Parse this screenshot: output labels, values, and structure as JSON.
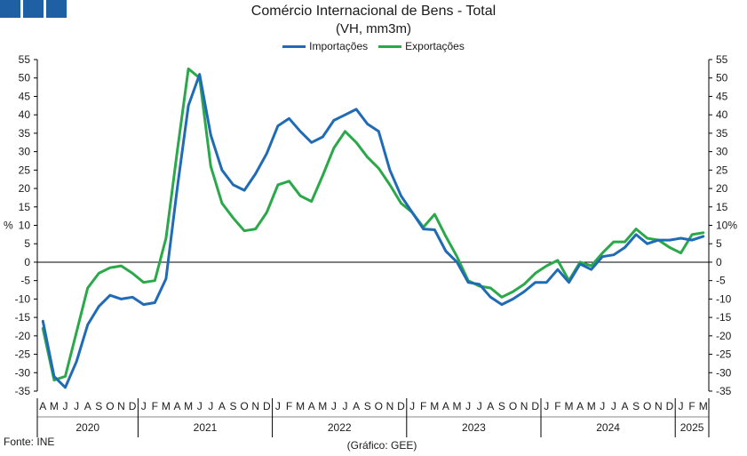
{
  "header": {
    "title": "Comércio Internacional de Bens - Total",
    "subtitle": "(VH, mm3m)"
  },
  "footer": {
    "source": "Fonte: INE",
    "credit": "(Gráfico: GEE)"
  },
  "chart_data": {
    "type": "line",
    "ylabel": "%",
    "ylabel_right": "%",
    "ylim": [
      -35,
      55
    ],
    "ytick_step": 5,
    "grid": false,
    "legend_position": "top-center",
    "x": [
      "2020-04",
      "2020-05",
      "2020-06",
      "2020-07",
      "2020-08",
      "2020-09",
      "2020-10",
      "2020-11",
      "2020-12",
      "2021-01",
      "2021-02",
      "2021-03",
      "2021-04",
      "2021-05",
      "2021-06",
      "2021-07",
      "2021-08",
      "2021-09",
      "2021-10",
      "2021-11",
      "2021-12",
      "2022-01",
      "2022-02",
      "2022-03",
      "2022-04",
      "2022-05",
      "2022-06",
      "2022-07",
      "2022-08",
      "2022-09",
      "2022-10",
      "2022-11",
      "2022-12",
      "2023-01",
      "2023-02",
      "2023-03",
      "2023-04",
      "2023-05",
      "2023-06",
      "2023-07",
      "2023-08",
      "2023-09",
      "2023-10",
      "2023-11",
      "2023-12",
      "2024-01",
      "2024-02",
      "2024-03",
      "2024-04",
      "2024-05",
      "2024-06",
      "2024-07",
      "2024-08",
      "2024-09",
      "2024-10",
      "2024-11",
      "2024-12",
      "2025-01",
      "2025-02",
      "2025-03"
    ],
    "month_labels": [
      "A",
      "M",
      "J",
      "J",
      "A",
      "S",
      "O",
      "N",
      "D",
      "J",
      "F",
      "M",
      "A",
      "M",
      "J",
      "J",
      "A",
      "S",
      "O",
      "N",
      "D",
      "J",
      "F",
      "M",
      "A",
      "M",
      "J",
      "J",
      "A",
      "S",
      "O",
      "N",
      "D",
      "J",
      "F",
      "M",
      "A",
      "M",
      "J",
      "J",
      "A",
      "S",
      "O",
      "N",
      "D",
      "J",
      "F",
      "M",
      "A",
      "M",
      "J",
      "J",
      "A",
      "S",
      "O",
      "N",
      "D",
      "J",
      "F",
      "M"
    ],
    "year_labels": [
      "2020",
      "2021",
      "2022",
      "2023",
      "2024",
      "2025"
    ],
    "series": [
      {
        "name": "Importações",
        "color": "#1f6bb5",
        "values": [
          -16,
          -31,
          -34,
          -27,
          -17,
          -12,
          -9,
          -10,
          -9.5,
          -11.5,
          -11,
          -4.5,
          20,
          42.5,
          51,
          34.5,
          25,
          21,
          19.5,
          24,
          29.5,
          37,
          39,
          35.5,
          32.5,
          34,
          38.5,
          40,
          41.5,
          37.5,
          35.5,
          25,
          18,
          13.5,
          9,
          8.8,
          3,
          0,
          -5.5,
          -6,
          -9.5,
          -11.5,
          -10,
          -8,
          -5.5,
          -5.5,
          -2,
          -5.5,
          -0.5,
          -2,
          1.5,
          2,
          4,
          7.5,
          5,
          6,
          6,
          6.5,
          6,
          7
        ]
      },
      {
        "name": "Exportações",
        "color": "#2aa84a",
        "values": [
          -18,
          -32,
          -31,
          -19,
          -7,
          -3,
          -1.5,
          -1,
          -3,
          -5.5,
          -5,
          6.5,
          30,
          52.5,
          50,
          26,
          16,
          12,
          8.5,
          9,
          13.5,
          21,
          22,
          18,
          16.5,
          23.5,
          31,
          35.5,
          32.5,
          28.5,
          25.5,
          21,
          16,
          13.5,
          9.5,
          13,
          7,
          1.5,
          -5,
          -6.5,
          -7,
          -9.5,
          -8,
          -6,
          -3,
          -1,
          0.5,
          -5,
          0,
          -1,
          2.5,
          5.5,
          5.5,
          9,
          6.5,
          6,
          4,
          2.5,
          7.5,
          8
        ]
      }
    ]
  }
}
